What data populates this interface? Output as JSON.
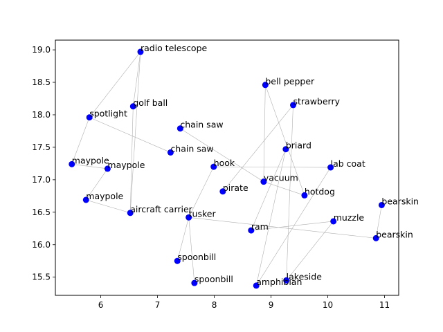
{
  "chart_data": {
    "type": "scatter",
    "title": "",
    "xlabel": "",
    "ylabel": "",
    "xlim": [
      5.2,
      11.25
    ],
    "ylim": [
      15.22,
      19.15
    ],
    "xticks": [
      6,
      7,
      8,
      9,
      10,
      11
    ],
    "yticks": [
      15.5,
      16.0,
      16.5,
      17.0,
      17.5,
      18.0,
      18.5,
      19.0
    ],
    "xtick_labels": [
      "6",
      "7",
      "8",
      "9",
      "10",
      "11"
    ],
    "ytick_labels": [
      "15.5",
      "16.0",
      "16.5",
      "17.0",
      "17.5",
      "18.0",
      "18.5",
      "19.0"
    ],
    "grid": false,
    "marker_color": "#0000ff",
    "edge_color": "#b0b0b0",
    "points": [
      {
        "label": "radio telescope",
        "x": 6.7,
        "y": 18.97
      },
      {
        "label": "golf ball",
        "x": 6.57,
        "y": 18.13
      },
      {
        "label": "spotlight",
        "x": 5.8,
        "y": 17.96
      },
      {
        "label": "chain saw",
        "x": 7.4,
        "y": 17.79
      },
      {
        "label": "chain saw",
        "x": 7.23,
        "y": 17.42
      },
      {
        "label": "maypole",
        "x": 5.49,
        "y": 17.24
      },
      {
        "label": "maypole",
        "x": 6.12,
        "y": 17.17
      },
      {
        "label": "maypole",
        "x": 5.74,
        "y": 16.69
      },
      {
        "label": "aircraft carrier",
        "x": 6.52,
        "y": 16.49
      },
      {
        "label": "hook",
        "x": 7.99,
        "y": 17.2
      },
      {
        "label": "pirate",
        "x": 8.15,
        "y": 16.82
      },
      {
        "label": "tusker",
        "x": 7.55,
        "y": 16.42
      },
      {
        "label": "spoonbill",
        "x": 7.35,
        "y": 15.75
      },
      {
        "label": "spoonbill",
        "x": 7.65,
        "y": 15.41
      },
      {
        "label": "bell pepper",
        "x": 8.9,
        "y": 18.46
      },
      {
        "label": "strawberry",
        "x": 9.39,
        "y": 18.15
      },
      {
        "label": "briard",
        "x": 9.26,
        "y": 17.47
      },
      {
        "label": "vacuum",
        "x": 8.87,
        "y": 16.97
      },
      {
        "label": "lab coat",
        "x": 10.05,
        "y": 17.19
      },
      {
        "label": "hotdog",
        "x": 9.59,
        "y": 16.76
      },
      {
        "label": "ram",
        "x": 8.65,
        "y": 16.22
      },
      {
        "label": "muzzle",
        "x": 10.1,
        "y": 16.36
      },
      {
        "label": "bearskin",
        "x": 10.95,
        "y": 16.61
      },
      {
        "label": "bearskin",
        "x": 10.85,
        "y": 16.1
      },
      {
        "label": "amphibian",
        "x": 8.74,
        "y": 15.37
      },
      {
        "label": "lakeside",
        "x": 9.27,
        "y": 15.45
      }
    ],
    "edges": [
      [
        0,
        1
      ],
      [
        0,
        2
      ],
      [
        2,
        5
      ],
      [
        2,
        4
      ],
      [
        1,
        8
      ],
      [
        0,
        8
      ],
      [
        5,
        6
      ],
      [
        6,
        7
      ],
      [
        7,
        8
      ],
      [
        3,
        17
      ],
      [
        9,
        11
      ],
      [
        9,
        18
      ],
      [
        11,
        12
      ],
      [
        11,
        13
      ],
      [
        11,
        23
      ],
      [
        14,
        17
      ],
      [
        14,
        19
      ],
      [
        15,
        10
      ],
      [
        15,
        25
      ],
      [
        16,
        20
      ],
      [
        16,
        24
      ],
      [
        17,
        19
      ],
      [
        20,
        21
      ],
      [
        21,
        25
      ],
      [
        22,
        23
      ],
      [
        18,
        24
      ]
    ]
  }
}
